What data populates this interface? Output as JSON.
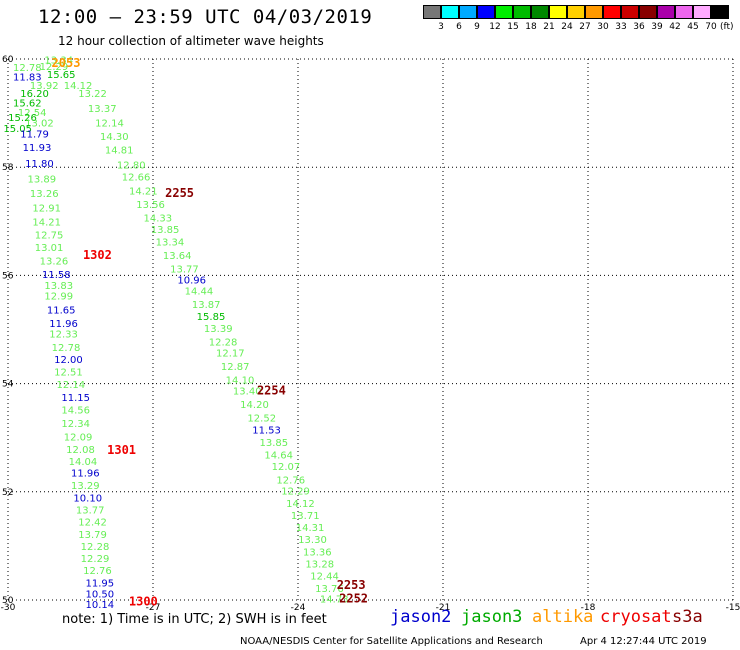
{
  "header": {
    "title": "12:00 — 23:59 UTC 04/03/2019",
    "subtitle": "12 hour collection of altimeter wave heights"
  },
  "legend": {
    "unit": "(ft)",
    "entries": [
      {
        "label": "3",
        "color": "#777777"
      },
      {
        "label": "6",
        "color": "#00ffff"
      },
      {
        "label": "9",
        "color": "#00aaff"
      },
      {
        "label": "12",
        "color": "#0000ff"
      },
      {
        "label": "15",
        "color": "#00ee00"
      },
      {
        "label": "18",
        "color": "#00bb00"
      },
      {
        "label": "21",
        "color": "#008800"
      },
      {
        "label": "24",
        "color": "#ffff00"
      },
      {
        "label": "27",
        "color": "#ffd000"
      },
      {
        "label": "30",
        "color": "#ff9900"
      },
      {
        "label": "33",
        "color": "#ff0000"
      },
      {
        "label": "36",
        "color": "#cc0000"
      },
      {
        "label": "39",
        "color": "#880000"
      },
      {
        "label": "42",
        "color": "#aa00aa"
      },
      {
        "label": "45",
        "color": "#ee66ee"
      },
      {
        "label": "70",
        "color": "#ffaaff"
      },
      {
        "label": "",
        "color": "#000000"
      }
    ]
  },
  "map": {
    "lon_range": [
      -30,
      -15
    ],
    "lat_range": [
      50,
      60
    ],
    "lon_ticks": [
      "-30",
      "-27",
      "-24",
      "-21",
      "-18",
      "-15"
    ],
    "lat_ticks": [
      "50",
      "52",
      "54",
      "56",
      "58",
      "60"
    ]
  },
  "colors": {
    "light_green": "#66ee55",
    "green": "#00bb00",
    "blue": "#0000cc",
    "orange": "#ff9900",
    "red": "#ee0000",
    "dark_red": "#880000"
  },
  "observations": [
    {
      "t": "13.34",
      "lon": -28.95,
      "lat": 59.92,
      "c": "light_green"
    },
    {
      "t": "12.78",
      "lon": -29.6,
      "lat": 59.78,
      "c": "light_green"
    },
    {
      "t": "12.29",
      "lon": -29.05,
      "lat": 59.8,
      "c": "light_green"
    },
    {
      "t": "15.65",
      "lon": -28.9,
      "lat": 59.65,
      "c": "green"
    },
    {
      "t": "11.83",
      "lon": -29.6,
      "lat": 59.6,
      "c": "blue"
    },
    {
      "t": "14.12",
      "lon": -28.55,
      "lat": 59.45,
      "c": "light_green"
    },
    {
      "t": "13.92",
      "lon": -29.25,
      "lat": 59.45,
      "c": "light_green"
    },
    {
      "t": "16.20",
      "lon": -29.45,
      "lat": 59.3,
      "c": "green"
    },
    {
      "t": "13.22",
      "lon": -28.25,
      "lat": 59.3,
      "c": "light_green"
    },
    {
      "t": "15.62",
      "lon": -29.6,
      "lat": 59.12,
      "c": "green"
    },
    {
      "t": "13.37",
      "lon": -28.05,
      "lat": 59.02,
      "c": "light_green"
    },
    {
      "t": "12.54",
      "lon": -29.5,
      "lat": 58.95,
      "c": "light_green"
    },
    {
      "t": "15.26",
      "lon": -29.7,
      "lat": 58.85,
      "c": "green"
    },
    {
      "t": "12.14",
      "lon": -27.9,
      "lat": 58.75,
      "c": "light_green"
    },
    {
      "t": "13.02",
      "lon": -29.35,
      "lat": 58.75,
      "c": "light_green"
    },
    {
      "t": "15.05",
      "lon": -29.8,
      "lat": 58.65,
      "c": "green"
    },
    {
      "t": "14.30",
      "lon": -27.8,
      "lat": 58.5,
      "c": "light_green"
    },
    {
      "t": "11.79",
      "lon": -29.45,
      "lat": 58.55,
      "c": "blue"
    },
    {
      "t": "14.81",
      "lon": -27.7,
      "lat": 58.25,
      "c": "light_green"
    },
    {
      "t": "11.93",
      "lon": -29.4,
      "lat": 58.3,
      "c": "blue"
    },
    {
      "t": "12.80",
      "lon": -27.45,
      "lat": 57.98,
      "c": "light_green"
    },
    {
      "t": "11.80",
      "lon": -29.35,
      "lat": 58.0,
      "c": "blue"
    },
    {
      "t": "12.66",
      "lon": -27.35,
      "lat": 57.75,
      "c": "light_green"
    },
    {
      "t": "13.89",
      "lon": -29.3,
      "lat": 57.72,
      "c": "light_green"
    },
    {
      "t": "14.21",
      "lon": -27.2,
      "lat": 57.5,
      "c": "light_green"
    },
    {
      "t": "13.26",
      "lon": -29.25,
      "lat": 57.45,
      "c": "light_green"
    },
    {
      "t": "13.56",
      "lon": -27.05,
      "lat": 57.25,
      "c": "light_green"
    },
    {
      "t": "12.91",
      "lon": -29.2,
      "lat": 57.18,
      "c": "light_green"
    },
    {
      "t": "14.33",
      "lon": -26.9,
      "lat": 57.0,
      "c": "light_green"
    },
    {
      "t": "14.21",
      "lon": -29.2,
      "lat": 56.92,
      "c": "light_green"
    },
    {
      "t": "13.85",
      "lon": -26.75,
      "lat": 56.78,
      "c": "light_green"
    },
    {
      "t": "12.75",
      "lon": -29.15,
      "lat": 56.68,
      "c": "light_green"
    },
    {
      "t": "13.34",
      "lon": -26.65,
      "lat": 56.55,
      "c": "light_green"
    },
    {
      "t": "13.01",
      "lon": -29.15,
      "lat": 56.45,
      "c": "light_green"
    },
    {
      "t": "13.64",
      "lon": -26.5,
      "lat": 56.3,
      "c": "light_green"
    },
    {
      "t": "13.26",
      "lon": -29.05,
      "lat": 56.2,
      "c": "light_green"
    },
    {
      "t": "13.77",
      "lon": -26.35,
      "lat": 56.05,
      "c": "light_green"
    },
    {
      "t": "11.58",
      "lon": -29.0,
      "lat": 55.95,
      "c": "blue"
    },
    {
      "t": "10.96",
      "lon": -26.2,
      "lat": 55.85,
      "c": "blue"
    },
    {
      "t": "13.83",
      "lon": -28.95,
      "lat": 55.75,
      "c": "light_green"
    },
    {
      "t": "14.44",
      "lon": -26.05,
      "lat": 55.65,
      "c": "light_green"
    },
    {
      "t": "12.99",
      "lon": -28.95,
      "lat": 55.55,
      "c": "light_green"
    },
    {
      "t": "13.87",
      "lon": -25.9,
      "lat": 55.4,
      "c": "light_green"
    },
    {
      "t": "11.65",
      "lon": -28.9,
      "lat": 55.3,
      "c": "blue"
    },
    {
      "t": "15.85",
      "lon": -25.8,
      "lat": 55.18,
      "c": "green"
    },
    {
      "t": "11.96",
      "lon": -28.85,
      "lat": 55.05,
      "c": "blue"
    },
    {
      "t": "13.39",
      "lon": -25.65,
      "lat": 54.95,
      "c": "light_green"
    },
    {
      "t": "12.33",
      "lon": -28.85,
      "lat": 54.85,
      "c": "light_green"
    },
    {
      "t": "12.28",
      "lon": -25.55,
      "lat": 54.7,
      "c": "light_green"
    },
    {
      "t": "12.78",
      "lon": -28.8,
      "lat": 54.6,
      "c": "light_green"
    },
    {
      "t": "12.17",
      "lon": -25.4,
      "lat": 54.5,
      "c": "light_green"
    },
    {
      "t": "12.00",
      "lon": -28.75,
      "lat": 54.38,
      "c": "blue"
    },
    {
      "t": "12.87",
      "lon": -25.3,
      "lat": 54.25,
      "c": "light_green"
    },
    {
      "t": "12.51",
      "lon": -28.75,
      "lat": 54.15,
      "c": "light_green"
    },
    {
      "t": "14.10",
      "lon": -25.2,
      "lat": 54.0,
      "c": "light_green"
    },
    {
      "t": "12.14",
      "lon": -28.7,
      "lat": 53.92,
      "c": "light_green"
    },
    {
      "t": "13.40",
      "lon": -25.05,
      "lat": 53.8,
      "c": "light_green"
    },
    {
      "t": "11.15",
      "lon": -28.6,
      "lat": 53.68,
      "c": "blue"
    },
    {
      "t": "14.20",
      "lon": -24.9,
      "lat": 53.55,
      "c": "light_green"
    },
    {
      "t": "14.56",
      "lon": -28.6,
      "lat": 53.45,
      "c": "light_green"
    },
    {
      "t": "12.52",
      "lon": -24.75,
      "lat": 53.3,
      "c": "light_green"
    },
    {
      "t": "12.34",
      "lon": -28.6,
      "lat": 53.2,
      "c": "light_green"
    },
    {
      "t": "11.53",
      "lon": -24.65,
      "lat": 53.08,
      "c": "blue"
    },
    {
      "t": "12.09",
      "lon": -28.55,
      "lat": 52.95,
      "c": "light_green"
    },
    {
      "t": "13.85",
      "lon": -24.5,
      "lat": 52.85,
      "c": "light_green"
    },
    {
      "t": "12.08",
      "lon": -28.5,
      "lat": 52.72,
      "c": "light_green"
    },
    {
      "t": "14.64",
      "lon": -24.4,
      "lat": 52.62,
      "c": "light_green"
    },
    {
      "t": "14.04",
      "lon": -28.45,
      "lat": 52.5,
      "c": "light_green"
    },
    {
      "t": "12.07",
      "lon": -24.25,
      "lat": 52.4,
      "c": "light_green"
    },
    {
      "t": "11.96",
      "lon": -28.4,
      "lat": 52.28,
      "c": "blue"
    },
    {
      "t": "12.76",
      "lon": -24.15,
      "lat": 52.15,
      "c": "light_green"
    },
    {
      "t": "13.29",
      "lon": -28.4,
      "lat": 52.05,
      "c": "light_green"
    },
    {
      "t": "12.29",
      "lon": -24.05,
      "lat": 51.95,
      "c": "light_green"
    },
    {
      "t": "10.10",
      "lon": -28.35,
      "lat": 51.82,
      "c": "blue"
    },
    {
      "t": "14.12",
      "lon": -23.95,
      "lat": 51.72,
      "c": "light_green"
    },
    {
      "t": "13.77",
      "lon": -28.3,
      "lat": 51.6,
      "c": "light_green"
    },
    {
      "t": "13.71",
      "lon": -23.85,
      "lat": 51.5,
      "c": "light_green"
    },
    {
      "t": "12.42",
      "lon": -28.25,
      "lat": 51.38,
      "c": "light_green"
    },
    {
      "t": "14.31",
      "lon": -23.75,
      "lat": 51.28,
      "c": "light_green"
    },
    {
      "t": "13.79",
      "lon": -28.25,
      "lat": 51.15,
      "c": "light_green"
    },
    {
      "t": "13.30",
      "lon": -23.7,
      "lat": 51.05,
      "c": "light_green"
    },
    {
      "t": "12.28",
      "lon": -28.2,
      "lat": 50.92,
      "c": "light_green"
    },
    {
      "t": "13.36",
      "lon": -23.6,
      "lat": 50.82,
      "c": "light_green"
    },
    {
      "t": "12.29",
      "lon": -28.2,
      "lat": 50.7,
      "c": "light_green"
    },
    {
      "t": "13.28",
      "lon": -23.55,
      "lat": 50.6,
      "c": "light_green"
    },
    {
      "t": "12.76",
      "lon": -28.15,
      "lat": 50.48,
      "c": "light_green"
    },
    {
      "t": "12.44",
      "lon": -23.45,
      "lat": 50.38,
      "c": "light_green"
    },
    {
      "t": "11.95",
      "lon": -28.1,
      "lat": 50.25,
      "c": "blue"
    },
    {
      "t": "13.76",
      "lon": -23.35,
      "lat": 50.15,
      "c": "light_green"
    },
    {
      "t": "10.50",
      "lon": -28.1,
      "lat": 50.05,
      "c": "blue"
    },
    {
      "t": "14.73",
      "lon": -23.25,
      "lat": 49.95,
      "c": "light_green"
    },
    {
      "t": "10.14",
      "lon": -28.1,
      "lat": 49.85,
      "c": "blue"
    }
  ],
  "track_labels": [
    {
      "t": "2053",
      "lon": -28.8,
      "lat": 59.85,
      "c": "orange"
    },
    {
      "t": "2255",
      "lon": -26.45,
      "lat": 57.45,
      "c": "dark_red"
    },
    {
      "t": "1302",
      "lon": -28.15,
      "lat": 56.3,
      "c": "red"
    },
    {
      "t": "2254",
      "lon": -24.55,
      "lat": 53.8,
      "c": "dark_red"
    },
    {
      "t": "1301",
      "lon": -27.65,
      "lat": 52.7,
      "c": "red"
    },
    {
      "t": "2253",
      "lon": -22.9,
      "lat": 50.2,
      "c": "dark_red"
    },
    {
      "t": "2252",
      "lon": -22.85,
      "lat": 49.95,
      "c": "dark_red"
    },
    {
      "t": "1300",
      "lon": -27.2,
      "lat": 49.9,
      "c": "red"
    }
  ],
  "footer": {
    "note": "note:  1) Time is in UTC;  2) SWH is in feet",
    "satellites": [
      {
        "name": "jason2",
        "color": "#0000cc"
      },
      {
        "name": "jason3",
        "color": "#00aa00"
      },
      {
        "name": "altika",
        "color": "#ff9900"
      },
      {
        "name": "cryosat",
        "color": "#ee0000"
      },
      {
        "name": "s3a",
        "color": "#880000"
      }
    ],
    "credit": "NOAA/NESDIS Center for Satellite Applications and Research",
    "timestamp": "Apr  4 12:27:44 UTC 2019"
  }
}
